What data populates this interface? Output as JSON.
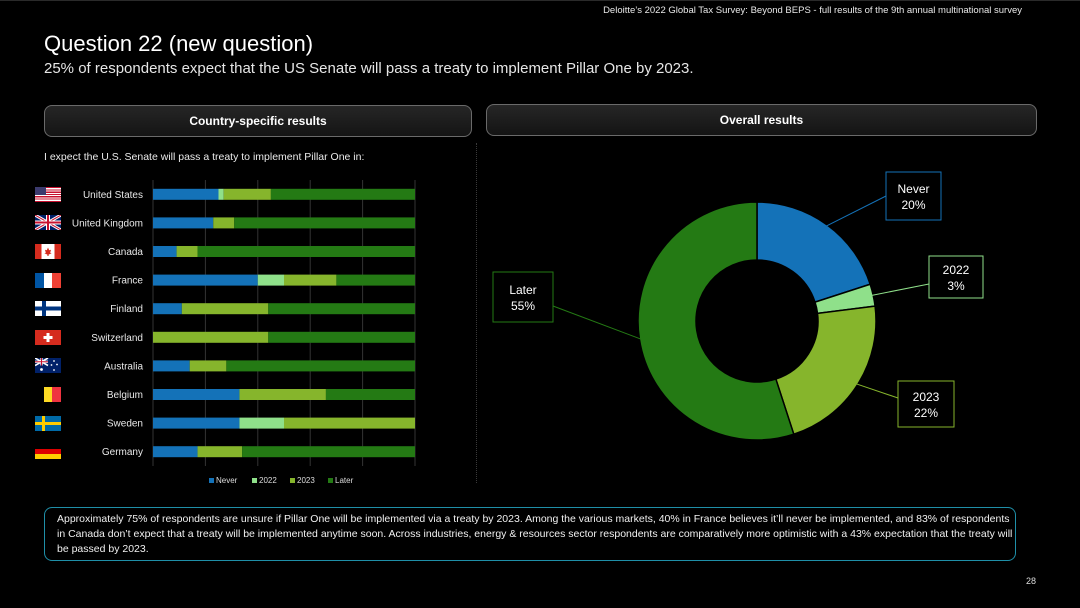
{
  "header": {
    "report_ref": "Deloitte’s 2022 Global Tax Survey: Beyond BEPS - full results of the 9th annual multinational survey"
  },
  "title": "Question 22 (new question)",
  "subtitle": "25% of respondents expect that the US Senate will pass a treaty to implement Pillar One by 2023.",
  "panels": {
    "country_button": "Country-specific results",
    "overall_button": "Overall results",
    "question_lead": "I expect the U.S. Senate will pass a treaty to implement Pillar One in:"
  },
  "colors": {
    "never": "#1472b8",
    "y2022": "#8fe08a",
    "y2023": "#86b52c",
    "later": "#247a14"
  },
  "flags": [
    {
      "country": "United States",
      "icon": "us-flag-icon"
    },
    {
      "country": "United Kingdom",
      "icon": "uk-flag-icon"
    },
    {
      "country": "Canada",
      "icon": "canada-flag-icon"
    },
    {
      "country": "France",
      "icon": "france-flag-icon"
    },
    {
      "country": "Finland",
      "icon": "finland-flag-icon"
    },
    {
      "country": "Switzerland",
      "icon": "switzerland-flag-icon"
    },
    {
      "country": "Australia",
      "icon": "australia-flag-icon"
    },
    {
      "country": "Belgium",
      "icon": "belgium-flag-icon"
    },
    {
      "country": "Sweden",
      "icon": "sweden-flag-icon"
    },
    {
      "country": "Germany",
      "icon": "germany-flag-icon"
    }
  ],
  "chart_data": [
    {
      "type": "bar",
      "orientation": "horizontal",
      "stacked": true,
      "percent": true,
      "categories": [
        "United States",
        "United Kingdom",
        "Canada",
        "France",
        "Finland",
        "Switzerland",
        "Australia",
        "Belgium",
        "Sweden",
        "Germany"
      ],
      "series": [
        {
          "name": "Never",
          "values": [
            25,
            23,
            9,
            40,
            11,
            0,
            14,
            33,
            33,
            17
          ]
        },
        {
          "name": "2022",
          "values": [
            2,
            0,
            0,
            10,
            0,
            0,
            0,
            0,
            17,
            0
          ]
        },
        {
          "name": "2023",
          "values": [
            18,
            8,
            8,
            20,
            33,
            44,
            14,
            33,
            50,
            17
          ]
        },
        {
          "name": "Later",
          "values": [
            55,
            69,
            83,
            30,
            56,
            56,
            72,
            34,
            0,
            66
          ]
        }
      ],
      "xlim": [
        0,
        100
      ],
      "grid": true,
      "legend": "bottom"
    },
    {
      "type": "pie",
      "donut": true,
      "labels": [
        "Never",
        "2022",
        "2023",
        "Later"
      ],
      "values": [
        20,
        3,
        22,
        55
      ],
      "data_labels": [
        "20%",
        "3%",
        "22%",
        "55%"
      ]
    }
  ],
  "footer": {
    "note": "Approximately 75% of respondents are unsure if Pillar One will be implemented via a treaty by 2023. Among the various markets, 40% in France believes it’ll never be implemented, and 83% of respondents in Canada don’t expect that a treaty will be implemented anytime soon. Across industries, energy & resources sector respondents are comparatively more optimistic with a 43% expectation that the treaty will be passed by 2023.",
    "page_number": "28"
  }
}
